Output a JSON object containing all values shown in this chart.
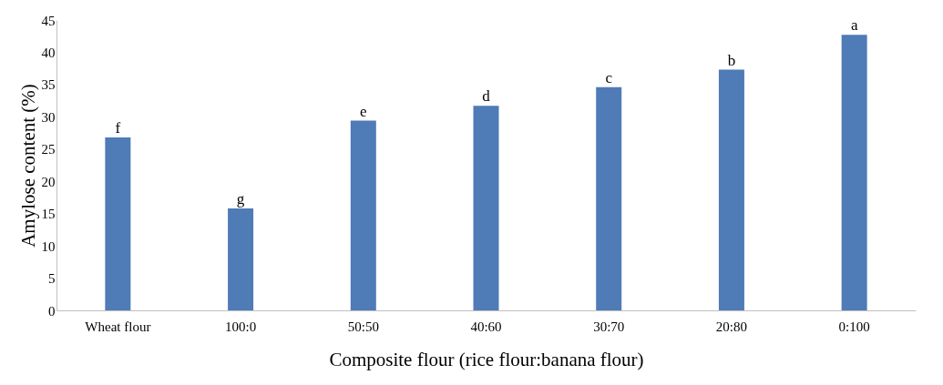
{
  "chart_data": {
    "type": "bar",
    "xlabel": "Composite flour (rice flour:banana flour)",
    "ylabel": "Amylose content (%)",
    "categories": [
      "Wheat flour",
      "100:0",
      "50:50",
      "40:60",
      "30:70",
      "20:80",
      "0:100"
    ],
    "values": [
      26.8,
      15.8,
      29.4,
      31.7,
      34.6,
      37.3,
      42.7
    ],
    "color": "#4f7bb6",
    "ylim": [
      0,
      45
    ],
    "yticks": [
      0,
      5,
      10,
      15,
      20,
      25,
      30,
      35,
      40,
      45
    ],
    "grid": false,
    "annotations": [
      {
        "text": "f",
        "x": "Wheat flour",
        "y": 26.8
      },
      {
        "text": "g",
        "x": "100:0",
        "y": 15.8
      },
      {
        "text": "e",
        "x": "50:50",
        "y": 29.4
      },
      {
        "text": "d",
        "x": "40:60",
        "y": 31.7
      },
      {
        "text": "c",
        "x": "30:70",
        "y": 34.6
      },
      {
        "text": "b",
        "x": "20:80",
        "y": 37.3
      },
      {
        "text": "a",
        "x": "0:100",
        "y": 42.7
      }
    ]
  }
}
